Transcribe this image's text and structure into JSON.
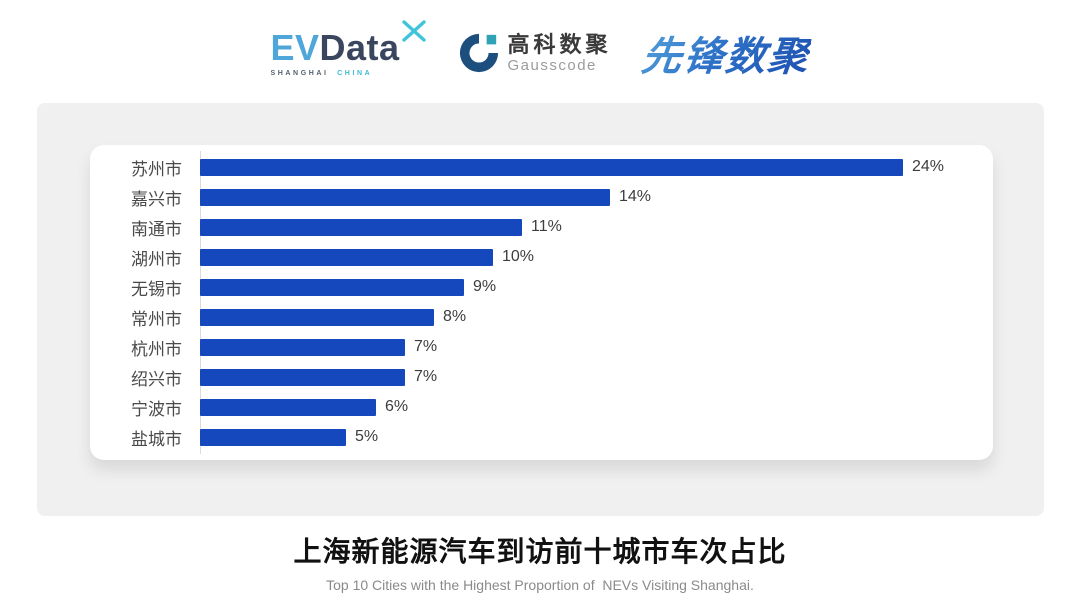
{
  "header": {
    "evdata": {
      "text_ev": "EV",
      "text_data": "Data",
      "sub_shanghai": "SHANGHAI",
      "sub_china": "CHINA",
      "colors": {
        "ev": "#4FA6D8",
        "data": "#39465E",
        "x_mark": "#3FC4DA",
        "sub_shanghai": "#53616F",
        "sub_china": "#3FB9D6"
      }
    },
    "gausscode": {
      "cn": "高科数聚",
      "en": "Gausscode",
      "colors": {
        "icon_main": "#1D4F7E",
        "icon_accent": "#2FA3B5",
        "cn": "#3A3A3A",
        "en": "#9B9B9B"
      }
    },
    "xianfeng": {
      "text": "先锋数聚",
      "colors": {
        "gradient_from": "#57A4DD",
        "gradient_to": "#1D4FAF"
      }
    }
  },
  "chart_data": {
    "type": "bar",
    "orientation": "horizontal",
    "categories": [
      "苏州市",
      "嘉兴市",
      "南通市",
      "湖州市",
      "无锡市",
      "常州市",
      "杭州市",
      "绍兴市",
      "宁波市",
      "盐城市"
    ],
    "values": [
      24,
      14,
      11,
      10,
      9,
      8,
      7,
      7,
      6,
      5
    ],
    "value_suffix": "%",
    "xlim": [
      0,
      24
    ],
    "bar_color": "#1548BD",
    "grid": false,
    "legend": false,
    "title": "上海新能源汽车到访前十城市车次占比",
    "subtitle": "Top 10 Cities with the Highest Proportion of  NEVs Visiting Shanghai."
  }
}
